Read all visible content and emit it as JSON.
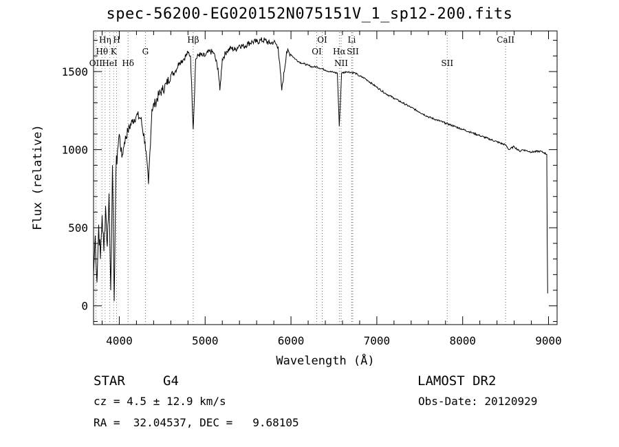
{
  "header": {
    "title": "spec-56200-EG020152N075151V_1_sp12-200.fits"
  },
  "info": {
    "object_class": "STAR",
    "subclass": "G4",
    "cz": "cz = 4.5 ± 12.9 km/s",
    "coords": "RA =  32.04537, DEC =   9.68105",
    "survey": "LAMOST DR2",
    "obs_date": "Obs-Date: 20120929"
  },
  "colors": {
    "line": "#000000",
    "line_marker": "#e03030",
    "marker_alt": "#777777"
  },
  "chart_data": {
    "type": "line",
    "title": "spec-56200-EG020152N075151V_1_sp12-200.fits",
    "xlabel": "Wavelength (Å)",
    "ylabel": "Flux (relative)",
    "xlim": [
      3700,
      9100
    ],
    "ylim": [
      -120,
      1760
    ],
    "x_ticks": [
      4000,
      5000,
      6000,
      7000,
      8000,
      9000
    ],
    "y_ticks": [
      0,
      500,
      1000,
      1500
    ],
    "x_tick_labels": [
      "4000",
      "5000",
      "6000",
      "7000",
      "8000",
      "9000"
    ],
    "y_tick_labels": [
      "0",
      "500",
      "1000",
      "1500"
    ],
    "grid": false,
    "series": [
      {
        "x": [
          3700,
          3720,
          3740,
          3760,
          3780,
          3800,
          3820,
          3840,
          3860,
          3880,
          3900,
          3920,
          3940,
          3960,
          3980,
          4000,
          4030,
          4060,
          4100,
          4150,
          4200,
          4250,
          4300,
          4340,
          4380,
          4420,
          4460,
          4500,
          4550,
          4600,
          4650,
          4700,
          4750,
          4800,
          4830,
          4861,
          4890,
          4930,
          4970,
          5000,
          5050,
          5100,
          5150,
          5172,
          5200,
          5250,
          5300,
          5350,
          5400,
          5450,
          5500,
          5550,
          5600,
          5650,
          5700,
          5750,
          5800,
          5850,
          5893,
          5950,
          6000,
          6050,
          6100,
          6150,
          6200,
          6250,
          6300,
          6350,
          6400,
          6450,
          6500,
          6540,
          6563,
          6590,
          6650,
          6700,
          6750,
          6800,
          6850,
          6900,
          6950,
          7000,
          7100,
          7200,
          7300,
          7400,
          7500,
          7600,
          7700,
          7800,
          7900,
          8000,
          8100,
          8200,
          8300,
          8400,
          8500,
          8540,
          8600,
          8662,
          8700,
          8800,
          8900,
          8950,
          8980,
          8985,
          8990
        ],
        "y": [
          200,
          450,
          150,
          520,
          300,
          580,
          350,
          640,
          380,
          720,
          100,
          900,
          30,
          850,
          1000,
          1100,
          950,
          1050,
          1120,
          1180,
          1220,
          1200,
          1050,
          780,
          1260,
          1300,
          1350,
          1380,
          1420,
          1480,
          1500,
          1560,
          1580,
          1620,
          1600,
          1130,
          1580,
          1610,
          1600,
          1600,
          1630,
          1620,
          1520,
          1380,
          1580,
          1630,
          1650,
          1640,
          1670,
          1660,
          1680,
          1690,
          1690,
          1700,
          1700,
          1680,
          1690,
          1660,
          1380,
          1630,
          1610,
          1580,
          1560,
          1550,
          1540,
          1530,
          1530,
          1520,
          1510,
          1500,
          1495,
          1490,
          1150,
          1490,
          1500,
          1495,
          1490,
          1470,
          1460,
          1440,
          1420,
          1400,
          1360,
          1330,
          1300,
          1270,
          1240,
          1210,
          1190,
          1170,
          1150,
          1130,
          1110,
          1090,
          1070,
          1050,
          1030,
          1000,
          1020,
          990,
          1000,
          985,
          990,
          980,
          970,
          430,
          80
        ]
      }
    ],
    "lines": [
      {
        "name": "OII",
        "x": 3727,
        "row": 3,
        "color": "alt"
      },
      {
        "name": "Hη",
        "x": 3835,
        "row": 1,
        "color": "alt"
      },
      {
        "name": "Hθ",
        "x": 3798,
        "row": 2,
        "color": "alt"
      },
      {
        "name": "HeI",
        "x": 3889,
        "row": 3,
        "color": "alt"
      },
      {
        "name": "K",
        "x": 3934,
        "row": 2,
        "color": "alt"
      },
      {
        "name": "H",
        "x": 3969,
        "row": 1,
        "color": "alt"
      },
      {
        "name": "Hδ",
        "x": 4102,
        "row": 3,
        "color": "red"
      },
      {
        "name": "G",
        "x": 4304,
        "row": 2,
        "color": "red"
      },
      {
        "name": "Hβ",
        "x": 4861,
        "row": 1,
        "color": "red"
      },
      {
        "name": "OI",
        "x": 6300,
        "row": 2,
        "color": "red"
      },
      {
        "name": "OI",
        "x": 6364,
        "row": 1,
        "color": "red"
      },
      {
        "name": "NII",
        "x": 6584,
        "row": 3,
        "color": "red"
      },
      {
        "name": "Hα",
        "x": 6563,
        "row": 2,
        "color": "red"
      },
      {
        "name": "Li",
        "x": 6708,
        "row": 1,
        "color": "red"
      },
      {
        "name": "SII",
        "x": 6720,
        "row": 2,
        "color": "red"
      },
      {
        "name": "SII",
        "x": 7820,
        "row": 3,
        "color": "red"
      },
      {
        "name": "CaII",
        "x": 8500,
        "row": 1,
        "color": "red"
      }
    ]
  }
}
